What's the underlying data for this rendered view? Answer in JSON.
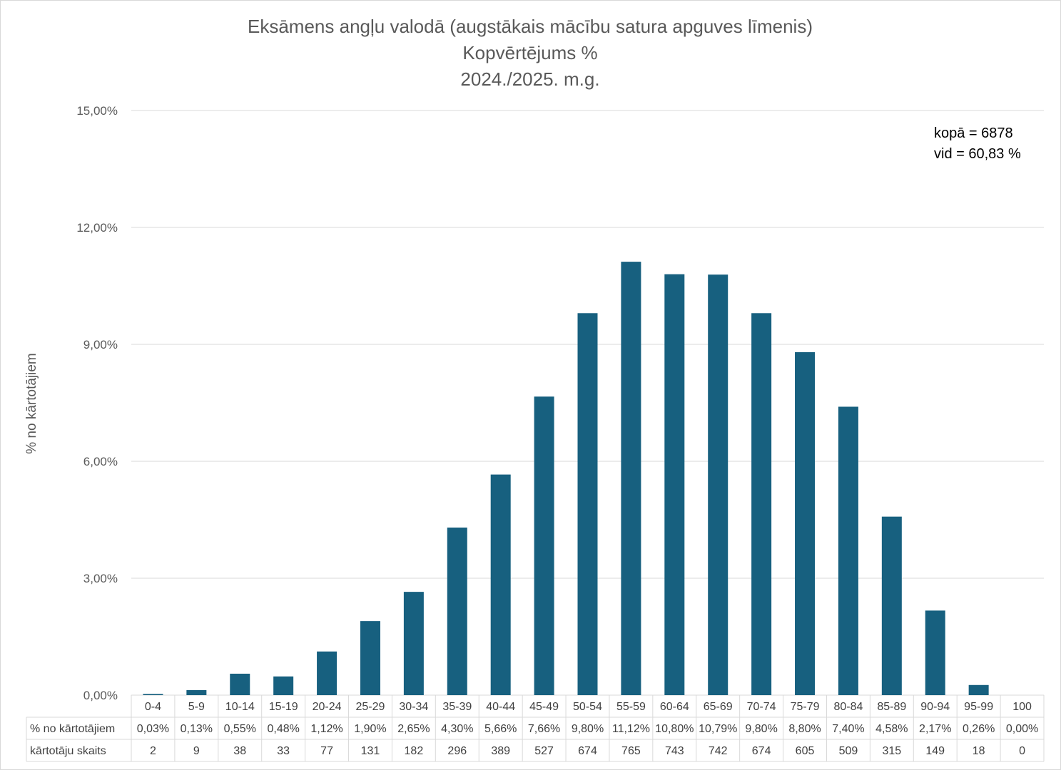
{
  "chart_data": {
    "type": "bar",
    "title_lines": [
      "Eksāmens angļu valodā (augstākais mācību satura apguves līmenis)",
      "Kopvērtējums %",
      "2024./2025. m.g."
    ],
    "ylabel": "% no kārtotājiem",
    "xlabel": "",
    "ylim": [
      0,
      15
    ],
    "yticks": [
      0,
      3,
      6,
      9,
      12,
      15
    ],
    "ytick_labels": [
      "0,00%",
      "3,00%",
      "6,00%",
      "9,00%",
      "12,00%",
      "15,00%"
    ],
    "grid": true,
    "categories": [
      "0-4",
      "5-9",
      "10-14",
      "15-19",
      "20-24",
      "25-29",
      "30-34",
      "35-39",
      "40-44",
      "45-49",
      "50-54",
      "55-59",
      "60-64",
      "65-69",
      "70-74",
      "75-79",
      "80-84",
      "85-89",
      "90-94",
      "95-99",
      "100"
    ],
    "series": [
      {
        "name": "% no kārtotājiem",
        "values": [
          0.03,
          0.13,
          0.55,
          0.48,
          1.12,
          1.9,
          2.65,
          4.3,
          5.66,
          7.66,
          9.8,
          11.12,
          10.8,
          10.79,
          9.8,
          8.8,
          7.4,
          4.58,
          2.17,
          0.26,
          0.0
        ],
        "labels": [
          "0,03%",
          "0,13%",
          "0,55%",
          "0,48%",
          "1,12%",
          "1,90%",
          "2,65%",
          "4,30%",
          "5,66%",
          "7,66%",
          "9,80%",
          "11,12%",
          "10,80%",
          "10,79%",
          "9,80%",
          "8,80%",
          "7,40%",
          "4,58%",
          "2,17%",
          "0,26%",
          "0,00%"
        ],
        "color": "#17607F"
      }
    ],
    "table": {
      "row_headers": [
        "% no kārtotājiem",
        "kārtotāju skaits"
      ],
      "counts": [
        "2",
        "9",
        "38",
        "33",
        "77",
        "131",
        "182",
        "296",
        "389",
        "527",
        "674",
        "765",
        "743",
        "742",
        "674",
        "605",
        "509",
        "315",
        "149",
        "18",
        "0"
      ]
    },
    "annotations": [
      "kopā = 6878",
      "vid = 60,83 %"
    ]
  }
}
